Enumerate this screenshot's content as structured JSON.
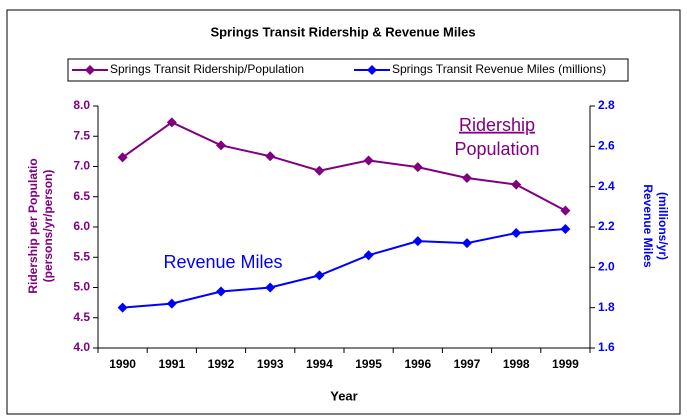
{
  "chart_data": {
    "type": "line",
    "title": "Springs Transit Ridership & Revenue Miles",
    "categories": [
      "1990",
      "1991",
      "1992",
      "1993",
      "1994",
      "1995",
      "1996",
      "1997",
      "1998",
      "1999"
    ],
    "series": [
      {
        "name": "Springs Transit Ridership/Population",
        "color": "#800080",
        "values": [
          7.15,
          7.73,
          7.35,
          7.17,
          6.93,
          7.1,
          6.99,
          6.81,
          6.7,
          6.27
        ]
      },
      {
        "name": "Springs Transit Revenue Miles (millions)",
        "color": "#0000ff",
        "axis": "y2",
        "values": [
          1.8,
          1.82,
          1.88,
          1.9,
          1.96,
          2.06,
          2.13,
          2.12,
          2.17,
          2.19
        ]
      }
    ],
    "ylim": [
      4.0,
      8.0
    ],
    "yticks": [
      {
        "value": 4.0,
        "label": "4.0"
      },
      4.5,
      {
        "value": 5.0,
        "label": "5.0"
      },
      5.5,
      {
        "value": 6.0,
        "label": "6.0"
      },
      6.5,
      {
        "value": 7.0,
        "label": "7.0"
      },
      7.5,
      {
        "value": 8.0,
        "label": "8.0"
      }
    ],
    "y2lim": [
      1.6,
      2.8
    ],
    "y2ticks": [
      1.6,
      1.8,
      {
        "value": 2.0,
        "label": "2.0"
      },
      2.2,
      2.4,
      2.6,
      2.8
    ],
    "x_label": "Year",
    "y_label": [
      "Ridership per Populatio",
      "(persons/yr/person)"
    ],
    "y2_label": [
      "Revenue Miles",
      "(millions/yr)"
    ],
    "annotations": [
      "Ridership",
      "Population",
      "Revenue Miles"
    ],
    "grid": false,
    "legend": "top"
  }
}
